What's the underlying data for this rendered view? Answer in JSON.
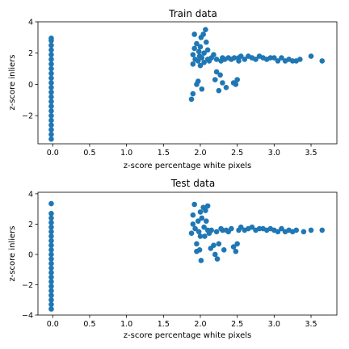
{
  "chart_data": [
    {
      "type": "scatter",
      "title": "Train data",
      "xlabel": "z-score percentage white pixels",
      "ylabel": "z-score inliers",
      "xlim": [
        -0.2,
        3.85
      ],
      "ylim": [
        -3.8,
        4.0
      ],
      "xticks": [
        0.0,
        0.5,
        1.0,
        1.5,
        2.0,
        2.5,
        3.0,
        3.5
      ],
      "xtick_labels": [
        "0.0",
        "0.5",
        "1.0",
        "1.5",
        "2.0",
        "2.5",
        "3.0",
        "3.5"
      ],
      "yticks": [
        -2,
        0,
        2,
        4
      ],
      "ytick_labels": [
        "−2",
        "0",
        "2",
        "4"
      ],
      "grid": false,
      "color": "#1f77b4",
      "points": [
        [
          -0.02,
          -3.5
        ],
        [
          -0.02,
          -3.2
        ],
        [
          -0.02,
          -2.9
        ],
        [
          -0.02,
          -2.6
        ],
        [
          -0.02,
          -2.3
        ],
        [
          -0.02,
          -2.0
        ],
        [
          -0.02,
          -1.7
        ],
        [
          -0.02,
          -1.4
        ],
        [
          -0.02,
          -1.1
        ],
        [
          -0.02,
          -0.8
        ],
        [
          -0.02,
          -0.5
        ],
        [
          -0.02,
          -0.2
        ],
        [
          -0.02,
          0.1
        ],
        [
          -0.02,
          0.4
        ],
        [
          -0.02,
          0.7
        ],
        [
          -0.02,
          1.0
        ],
        [
          -0.02,
          1.3
        ],
        [
          -0.02,
          1.6
        ],
        [
          -0.02,
          1.9
        ],
        [
          -0.02,
          2.2
        ],
        [
          -0.02,
          2.5
        ],
        [
          -0.02,
          2.8
        ],
        [
          -0.02,
          2.95
        ],
        [
          1.88,
          -0.95
        ],
        [
          1.9,
          -0.6
        ],
        [
          1.9,
          1.3
        ],
        [
          1.9,
          1.9
        ],
        [
          1.92,
          2.3
        ],
        [
          1.92,
          3.2
        ],
        [
          1.93,
          1.6
        ],
        [
          1.95,
          2.6
        ],
        [
          1.95,
          0.0
        ],
        [
          1.97,
          0.2
        ],
        [
          1.97,
          1.5
        ],
        [
          1.98,
          2.1
        ],
        [
          1.99,
          1.8
        ],
        [
          2.0,
          1.2
        ],
        [
          2.0,
          2.4
        ],
        [
          2.01,
          3.0
        ],
        [
          2.02,
          -0.3
        ],
        [
          2.02,
          1.7
        ],
        [
          2.04,
          3.2
        ],
        [
          2.05,
          2.0
        ],
        [
          2.05,
          1.4
        ],
        [
          2.07,
          3.5
        ],
        [
          2.08,
          2.7
        ],
        [
          2.1,
          2.2
        ],
        [
          2.1,
          1.6
        ],
        [
          2.12,
          1.5
        ],
        [
          2.15,
          1.7
        ],
        [
          2.18,
          1.9
        ],
        [
          2.2,
          0.3
        ],
        [
          2.22,
          0.8
        ],
        [
          2.22,
          1.6
        ],
        [
          2.25,
          -0.4
        ],
        [
          2.27,
          0.6
        ],
        [
          2.28,
          1.5
        ],
        [
          2.3,
          1.7
        ],
        [
          2.3,
          0.1
        ],
        [
          2.33,
          1.6
        ],
        [
          2.35,
          -0.2
        ],
        [
          2.38,
          1.7
        ],
        [
          2.42,
          1.6
        ],
        [
          2.45,
          0.1
        ],
        [
          2.46,
          1.7
        ],
        [
          2.48,
          0.0
        ],
        [
          2.5,
          0.3
        ],
        [
          2.52,
          1.7
        ],
        [
          2.52,
          1.5
        ],
        [
          2.55,
          1.8
        ],
        [
          2.6,
          1.6
        ],
        [
          2.65,
          1.8
        ],
        [
          2.7,
          1.7
        ],
        [
          2.75,
          1.6
        ],
        [
          2.8,
          1.8
        ],
        [
          2.85,
          1.7
        ],
        [
          2.9,
          1.6
        ],
        [
          2.95,
          1.7
        ],
        [
          3.0,
          1.7
        ],
        [
          3.05,
          1.5
        ],
        [
          3.1,
          1.7
        ],
        [
          3.15,
          1.5
        ],
        [
          3.2,
          1.6
        ],
        [
          3.25,
          1.5
        ],
        [
          3.3,
          1.5
        ],
        [
          3.35,
          1.6
        ],
        [
          3.5,
          1.8
        ],
        [
          3.65,
          1.5
        ]
      ]
    },
    {
      "type": "scatter",
      "title": "Test data",
      "xlabel": "z-score percentage white pixels",
      "ylabel": "z-score inliers",
      "xlim": [
        -0.2,
        3.85
      ],
      "ylim": [
        -4.0,
        4.1
      ],
      "xticks": [
        0.0,
        0.5,
        1.0,
        1.5,
        2.0,
        2.5,
        3.0,
        3.5
      ],
      "xtick_labels": [
        "0.0",
        "0.5",
        "1.0",
        "1.5",
        "2.0",
        "2.5",
        "3.0",
        "3.5"
      ],
      "yticks": [
        -4,
        -2,
        0,
        2,
        4
      ],
      "ytick_labels": [
        "−4",
        "−2",
        "0",
        "2",
        "4"
      ],
      "grid": false,
      "color": "#1f77b4",
      "points": [
        [
          -0.02,
          -3.6
        ],
        [
          -0.02,
          -3.3
        ],
        [
          -0.02,
          -3.0
        ],
        [
          -0.02,
          -2.7
        ],
        [
          -0.02,
          -2.4
        ],
        [
          -0.02,
          -2.1
        ],
        [
          -0.02,
          -1.8
        ],
        [
          -0.02,
          -1.5
        ],
        [
          -0.02,
          -1.2
        ],
        [
          -0.02,
          -0.9
        ],
        [
          -0.02,
          -0.6
        ],
        [
          -0.02,
          -0.3
        ],
        [
          -0.02,
          0.0
        ],
        [
          -0.02,
          0.3
        ],
        [
          -0.02,
          0.6
        ],
        [
          -0.02,
          0.9
        ],
        [
          -0.02,
          1.2
        ],
        [
          -0.02,
          1.5
        ],
        [
          -0.02,
          1.8
        ],
        [
          -0.02,
          2.1
        ],
        [
          -0.02,
          2.4
        ],
        [
          -0.02,
          2.7
        ],
        [
          -0.02,
          3.35
        ],
        [
          1.88,
          1.4
        ],
        [
          1.9,
          2.0
        ],
        [
          1.9,
          2.6
        ],
        [
          1.92,
          3.3
        ],
        [
          1.93,
          1.7
        ],
        [
          1.95,
          0.7
        ],
        [
          1.95,
          0.2
        ],
        [
          1.97,
          2.2
        ],
        [
          1.98,
          1.5
        ],
        [
          1.99,
          0.3
        ],
        [
          2.0,
          2.8
        ],
        [
          2.0,
          1.2
        ],
        [
          2.01,
          -0.4
        ],
        [
          2.02,
          2.4
        ],
        [
          2.04,
          3.1
        ],
        [
          2.05,
          1.8
        ],
        [
          2.06,
          1.2
        ],
        [
          2.07,
          2.9
        ],
        [
          2.08,
          2.2
        ],
        [
          2.1,
          3.2
        ],
        [
          2.1,
          1.6
        ],
        [
          2.12,
          1.4
        ],
        [
          2.14,
          0.4
        ],
        [
          2.15,
          1.6
        ],
        [
          2.18,
          0.6
        ],
        [
          2.2,
          0.0
        ],
        [
          2.22,
          1.5
        ],
        [
          2.23,
          -0.3
        ],
        [
          2.25,
          0.7
        ],
        [
          2.28,
          1.7
        ],
        [
          2.3,
          1.6
        ],
        [
          2.32,
          0.3
        ],
        [
          2.35,
          1.6
        ],
        [
          2.38,
          1.5
        ],
        [
          2.42,
          1.7
        ],
        [
          2.45,
          0.5
        ],
        [
          2.48,
          0.2
        ],
        [
          2.5,
          0.7
        ],
        [
          2.52,
          1.6
        ],
        [
          2.55,
          1.8
        ],
        [
          2.6,
          1.6
        ],
        [
          2.65,
          1.7
        ],
        [
          2.7,
          1.8
        ],
        [
          2.75,
          1.6
        ],
        [
          2.8,
          1.7
        ],
        [
          2.85,
          1.7
        ],
        [
          2.9,
          1.6
        ],
        [
          2.95,
          1.7
        ],
        [
          3.0,
          1.6
        ],
        [
          3.05,
          1.5
        ],
        [
          3.1,
          1.7
        ],
        [
          3.15,
          1.5
        ],
        [
          3.2,
          1.6
        ],
        [
          3.25,
          1.5
        ],
        [
          3.3,
          1.6
        ],
        [
          3.4,
          1.5
        ],
        [
          3.5,
          1.6
        ],
        [
          3.65,
          1.6
        ]
      ]
    }
  ]
}
